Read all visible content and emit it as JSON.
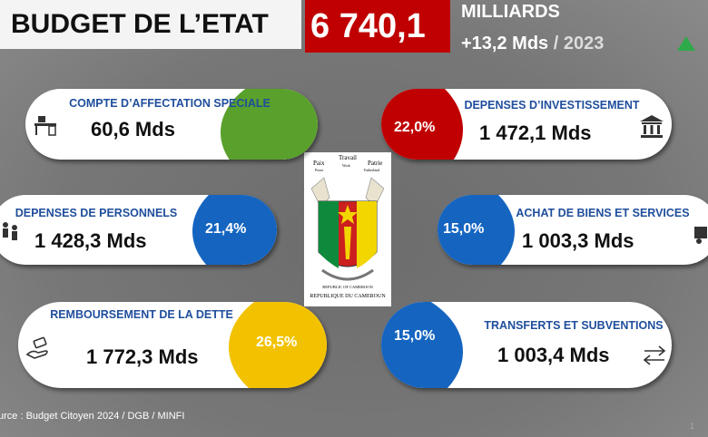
{
  "header": {
    "title": "BUDGET DE L’ETAT",
    "total": "6 740,1",
    "unit": "MILLIARDS",
    "change": "+13,2 Mds",
    "year": "/ 2023"
  },
  "cards": [
    {
      "title": "COMPTE D’AFFECTATION SPECIALE",
      "value": "60,6 Mds",
      "color": "#5aa02c"
    },
    {
      "title": "DEPENSES D’INVESTISSEMENT",
      "value": "1 472,1 Mds",
      "percent": "22,0%",
      "color": "#c00000"
    },
    {
      "title": "DEPENSES DE PERSONNELS",
      "value": "1 428,3 Mds",
      "percent": "21,4%",
      "color": "#1565c0"
    },
    {
      "title": "ACHAT DE BIENS ET SERVICES",
      "value": "1 003,3 Mds",
      "percent": "15,0%",
      "color": "#1565c0"
    },
    {
      "title": "REMBOURSEMENT DE LA DETTE",
      "value": "1 772,3 Mds",
      "percent": "26,5%",
      "color": "#f2c200"
    },
    {
      "title": "TRANSFERTS ET SUBVENTIONS",
      "value": "1 003,4 Mds",
      "percent": "15,0%",
      "color": "#1565c0"
    }
  ],
  "emblem": {
    "motto": [
      "Paix",
      "Travail",
      "Patrie"
    ],
    "motto_en": [
      "Peace",
      "Work",
      "Fatherland"
    ],
    "name_en": "REPUBLIC OF CAMEROON",
    "name_fr": "REPUBLIQUE DU CAMEROUN"
  },
  "source": "urce : Budget Citoyen 2024 / DGB / MINFI",
  "page_number": "1"
}
